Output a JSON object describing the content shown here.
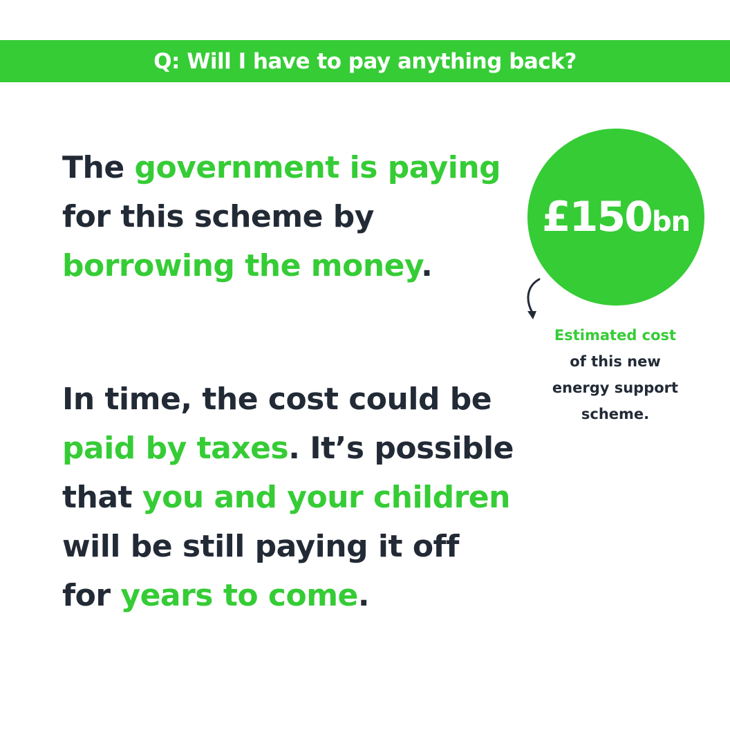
{
  "colors": {
    "accent": "#35cc35",
    "text": "#222a36",
    "background": "#ffffff"
  },
  "banner": {
    "question": "Q: Will I have to pay anything back?"
  },
  "paragraph1": {
    "line1_a": "The ",
    "line1_b": "government is paying",
    "line2": "for this scheme by",
    "line3_a": "borrowing the money",
    "line3_b": "."
  },
  "paragraph2": {
    "line1": "In time, the cost could be",
    "line2_a": "paid by taxes",
    "line2_b": ". It’s possible",
    "line3_a": "that ",
    "line3_b": "you and your children",
    "line4": "will be still paying it off",
    "line5_a": "for ",
    "line5_b": "years to come",
    "line5_c": "."
  },
  "cost_bubble": {
    "amount": "£150",
    "unit": "bn",
    "arrow_icon": "curved-arrow-down-icon"
  },
  "caption": {
    "line1": "Estimated cost",
    "line2": "of this new",
    "line3": "energy support",
    "line4": "scheme."
  }
}
